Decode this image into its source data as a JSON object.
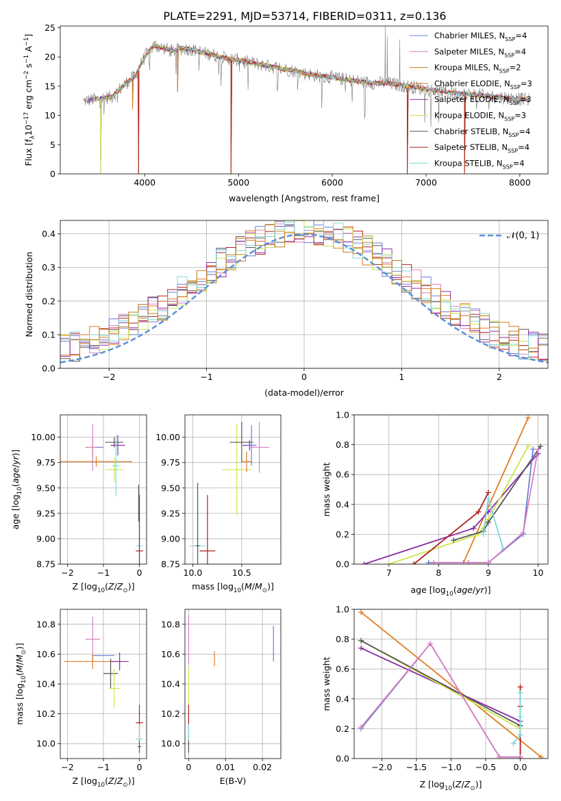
{
  "title": "PLATE=2291, MJD=53714, FIBERID=0311, z=0.136",
  "colors": {
    "Chabrier MILES": "#6a7fd8",
    "Salpeter MILES": "#d77fc0",
    "Kroupa MILES": "#c47a1c",
    "Chabrier ELODIE": "#e07b20",
    "Salpeter ELODIE": "#8a2aa5",
    "Kroupa ELODIE": "#cde64a",
    "Chabrier STELIB": "#555555",
    "Salpeter STELIB": "#b01c1c",
    "Kroupa STELIB": "#7fd8d8",
    "normal": "#5b8fd8",
    "grid": "#b0b0b0"
  },
  "chart_data": [
    {
      "id": "spectrum",
      "type": "line",
      "xlabel": "wavelength [Angstrom, rest frame]",
      "xlim": [
        3100,
        8300
      ],
      "ylim": [
        0,
        25.3
      ],
      "xticks": [
        4000,
        5000,
        6000,
        7000,
        8000
      ],
      "yticks": [
        0,
        5,
        10,
        15,
        20,
        25
      ],
      "legend_position": "upper right",
      "legend": [
        {
          "key": "Chabrier MILES",
          "label": "Chabrier MILES, N",
          "sub": "SSP",
          "n": "=4"
        },
        {
          "key": "Salpeter MILES",
          "label": "Salpeter MILES, N",
          "sub": "SSP",
          "n": "=4"
        },
        {
          "key": "Kroupa MILES",
          "label": "Kroupa MILES, N",
          "sub": "SSP",
          "n": "=2"
        },
        {
          "key": "Chabrier ELODIE",
          "label": "Chabrier ELODIE, N",
          "sub": "SSP",
          "n": "=3"
        },
        {
          "key": "Salpeter ELODIE",
          "label": "Salpeter ELODIE, N",
          "sub": "SSP",
          "n": "=3"
        },
        {
          "key": "Kroupa ELODIE",
          "label": "Kroupa ELODIE, N",
          "sub": "SSP",
          "n": "=3"
        },
        {
          "key": "Chabrier STELIB",
          "label": "Chabrier STELIB, N",
          "sub": "SSP",
          "n": "=4"
        },
        {
          "key": "Salpeter STELIB",
          "label": "Salpeter STELIB, N",
          "sub": "SSP",
          "n": "=4"
        },
        {
          "key": "Kroupa STELIB",
          "label": "Kroupa STELIB, N",
          "sub": "SSP",
          "n": "=4"
        }
      ],
      "continuum": [
        [
          3350,
          12.5
        ],
        [
          3500,
          12.8
        ],
        [
          3650,
          13.2
        ],
        [
          3800,
          15.5
        ],
        [
          3900,
          16.8
        ],
        [
          3950,
          18.5
        ],
        [
          4000,
          20.0
        ],
        [
          4100,
          22.0
        ],
        [
          4200,
          21.5
        ],
        [
          4300,
          21.0
        ],
        [
          4400,
          21.5
        ],
        [
          4500,
          21.3
        ],
        [
          4600,
          20.8
        ],
        [
          4700,
          20.5
        ],
        [
          4800,
          20.0
        ],
        [
          4900,
          19.7
        ],
        [
          5000,
          19.5
        ],
        [
          5200,
          18.8
        ],
        [
          5400,
          18.2
        ],
        [
          5600,
          17.6
        ],
        [
          5800,
          16.9
        ],
        [
          6000,
          16.5
        ],
        [
          6200,
          16.0
        ],
        [
          6400,
          15.6
        ],
        [
          6600,
          15.5
        ],
        [
          6800,
          15.0
        ],
        [
          7000,
          14.5
        ],
        [
          7200,
          14.1
        ],
        [
          7400,
          13.7
        ],
        [
          7600,
          13.4
        ],
        [
          7800,
          13.1
        ],
        [
          8000,
          12.8
        ],
        [
          8100,
          12.7
        ]
      ],
      "dips": [
        [
          3530,
          0
        ],
        [
          3870,
          11.0
        ],
        [
          3935,
          0
        ],
        [
          4350,
          14
        ],
        [
          4920,
          0
        ],
        [
          6800,
          0
        ],
        [
          7410,
          0
        ]
      ],
      "spikes": [
        [
          6565,
          25.3
        ],
        [
          6585,
          23.5
        ],
        [
          6720,
          23.0
        ],
        [
          5010,
          17.5
        ]
      ]
    },
    {
      "id": "residuals",
      "type": "bar",
      "xlabel": "(data-model)/error",
      "ylabel": "Normed distribution",
      "xlim": [
        -2.5,
        2.5
      ],
      "ylim": [
        0,
        0.44
      ],
      "xticks": [
        -2,
        -1,
        0,
        1,
        2
      ],
      "yticks": [
        0.0,
        0.1,
        0.2,
        0.3,
        0.4
      ],
      "grid": true,
      "legend": "𝒩(0, 1)",
      "bins": [
        -2.5,
        2.5,
        50
      ]
    },
    {
      "id": "age_vs_Z",
      "type": "scatter",
      "xlabel": "Z [log10(Z/Z⊙)]",
      "ylabel": "age  [log10(age/yr)]",
      "xlim": [
        -2.2,
        0.2
      ],
      "ylim": [
        8.75,
        10.22
      ],
      "xticks": [
        -2,
        -1,
        0
      ],
      "yticks": [
        8.75,
        9.0,
        9.25,
        9.5,
        9.75,
        10.0
      ],
      "grid": true,
      "points": [
        {
          "key": "Kroupa MILES",
          "x": -1.3,
          "y": 9.9,
          "xerr": 0.2,
          "yerr": 0.1
        },
        {
          "key": "Salpeter MILES",
          "x": -1.3,
          "y": 9.9,
          "xerr": 0.15,
          "yerr": 0.23
        },
        {
          "key": "Chabrier MILES",
          "x": -1.1,
          "y": 9.9,
          "xerr": 0.1,
          "yerr": 0.0
        },
        {
          "key": "Chabrier ELODIE",
          "x": -1.2,
          "y": 9.76,
          "xerr": 1.0,
          "yerr": 0.05
        },
        {
          "key": "Chabrier STELIB",
          "x": -0.7,
          "y": 9.95,
          "xerr": 0.25,
          "yerr": 0.05
        },
        {
          "key": "Salpeter ELODIE",
          "x": -0.6,
          "y": 9.92,
          "xerr": 0.2,
          "yerr": 0.1
        },
        {
          "key": "Kroupa ELODIE",
          "x": -0.7,
          "y": 9.68,
          "xerr": 0.25,
          "yerr": 0.12
        },
        {
          "key": "Kroupa STELIB",
          "x": -0.65,
          "y": 9.72,
          "xerr": 0.1,
          "yerr": 0.3
        },
        {
          "key": "Chabrier STELIB",
          "x": -0.02,
          "y": 9.35,
          "xerr": 0.0,
          "yerr": 0.18
        },
        {
          "key": "Kroupa STELIB",
          "x": 0.0,
          "y": 8.93,
          "xerr": 0.08,
          "yerr": 0.5
        },
        {
          "key": "Salpeter STELIB",
          "x": 0.0,
          "y": 8.88,
          "xerr": 0.1,
          "yerr": 0.55
        }
      ]
    },
    {
      "id": "age_vs_mass",
      "type": "scatter",
      "xlabel": "mass [log10(M/M⊙)]",
      "xlim": [
        9.92,
        10.9
      ],
      "ylim": [
        8.75,
        10.22
      ],
      "xticks": [
        10.0,
        10.5
      ],
      "yticks": [
        8.75,
        9.0,
        9.25,
        9.5,
        9.75,
        10.0
      ],
      "grid": true,
      "points": [
        {
          "key": "Kroupa ELODIE",
          "x": 10.45,
          "y": 9.68,
          "xerr": 0.15,
          "yerr": 0.45
        },
        {
          "key": "Chabrier STELIB",
          "x": 10.5,
          "y": 9.95,
          "xerr": 0.12,
          "yerr": 0.2
        },
        {
          "key": "Chabrier ELODIE",
          "x": 10.55,
          "y": 9.76,
          "xerr": 0.05,
          "yerr": 0.1
        },
        {
          "key": "Salpeter ELODIE",
          "x": 10.58,
          "y": 9.92,
          "xerr": 0.07,
          "yerr": 0.05
        },
        {
          "key": "Chabrier MILES",
          "x": 10.6,
          "y": 9.92,
          "xerr": 0.05,
          "yerr": 0.2
        },
        {
          "key": "Salpeter MILES",
          "x": 10.68,
          "y": 9.9,
          "xerr": 0.1,
          "yerr": 0.25
        },
        {
          "key": "Kroupa STELIB",
          "x": 10.05,
          "y": 8.93,
          "xerr": 0.08,
          "yerr": 0.5
        },
        {
          "key": "Chabrier STELIB",
          "x": 10.05,
          "y": 8.93,
          "xerr": 0.02,
          "yerr": 0.62
        },
        {
          "key": "Salpeter STELIB",
          "x": 10.15,
          "y": 8.88,
          "xerr": 0.08,
          "yerr": 0.55
        }
      ]
    },
    {
      "id": "mass_weight_vs_age",
      "type": "line",
      "xlabel": "age  [log10(age/yr)]",
      "ylabel": "mass weight",
      "xlim": [
        6.3,
        10.2
      ],
      "ylim": [
        0,
        1.0
      ],
      "xticks": [
        7,
        8,
        9,
        10
      ],
      "yticks": [
        0.0,
        0.2,
        0.4,
        0.6,
        0.8,
        1.0
      ],
      "grid": true,
      "series": [
        {
          "key": "Chabrier ELODIE",
          "x": [
            8.5,
            9.8
          ],
          "y": [
            0.01,
            0.98
          ]
        },
        {
          "key": "Salpeter ELODIE",
          "x": [
            6.5,
            8.7,
            9.0,
            10.0
          ],
          "y": [
            0.0,
            0.24,
            0.35,
            0.74
          ]
        },
        {
          "key": "Kroupa ELODIE",
          "x": [
            7.0,
            8.8,
            9.0,
            9.8
          ],
          "y": [
            0.0,
            0.2,
            0.3,
            0.79
          ]
        },
        {
          "key": "Chabrier STELIB",
          "x": [
            8.3,
            8.9,
            9.0,
            10.05
          ],
          "y": [
            0.16,
            0.22,
            0.28,
            0.79
          ]
        },
        {
          "key": "Salpeter STELIB",
          "x": [
            7.5,
            8.8,
            9.0
          ],
          "y": [
            0.0,
            0.35,
            0.48
          ]
        },
        {
          "key": "Kroupa STELIB",
          "x": [
            8.9,
            9.0,
            9.3
          ],
          "y": [
            0.2,
            0.44,
            0.1
          ]
        },
        {
          "key": "Chabrier MILES",
          "x": [
            7.8,
            8.6,
            9.0,
            9.7,
            9.9
          ],
          "y": [
            0.01,
            0.01,
            0.01,
            0.2,
            0.77
          ]
        },
        {
          "key": "Salpeter MILES",
          "x": [
            7.9,
            8.6,
            9.0,
            9.7,
            10.0
          ],
          "y": [
            0.01,
            0.01,
            0.01,
            0.21,
            0.77
          ]
        }
      ]
    },
    {
      "id": "mass_vs_Z",
      "type": "scatter",
      "xlabel": "Z [log10(Z/Z⊙)]",
      "ylabel": "mass [log10(M/M⊙)]",
      "xlim": [
        -2.2,
        0.2
      ],
      "ylim": [
        9.9,
        10.9
      ],
      "xticks": [
        -2,
        -1,
        0
      ],
      "yticks": [
        10.0,
        10.2,
        10.4,
        10.6,
        10.8
      ],
      "grid": true,
      "points": [
        {
          "key": "Salpeter MILES",
          "x": -1.3,
          "y": 10.7,
          "xerr": 0.2,
          "yerr": 0.15
        },
        {
          "key": "Chabrier MILES",
          "x": -1.0,
          "y": 10.59,
          "xerr": 0.3,
          "yerr": 0.0
        },
        {
          "key": "Chabrier ELODIE",
          "x": -1.3,
          "y": 10.55,
          "xerr": 0.8,
          "yerr": 0.05
        },
        {
          "key": "Salpeter ELODIE",
          "x": -0.55,
          "y": 10.55,
          "xerr": 0.25,
          "yerr": 0.06
        },
        {
          "key": "Chabrier STELIB",
          "x": -0.8,
          "y": 10.47,
          "xerr": 0.2,
          "yerr": 0.1
        },
        {
          "key": "Kroupa ELODIE",
          "x": -0.7,
          "y": 10.37,
          "xerr": 0.15,
          "yerr": 0.13
        },
        {
          "key": "Salpeter STELIB",
          "x": 0.0,
          "y": 10.14,
          "xerr": 0.1,
          "yerr": 0.12
        },
        {
          "key": "Kroupa STELIB",
          "x": 0.0,
          "y": 10.03,
          "xerr": 0.1,
          "yerr": 0.1
        },
        {
          "key": "Chabrier STELIB",
          "x": 0.0,
          "y": 9.98,
          "xerr": 0.05,
          "yerr": 0.04
        }
      ]
    },
    {
      "id": "mass_vs_ebv",
      "type": "scatter",
      "xlabel": "E(B-V)",
      "xlim": [
        -0.001,
        0.025
      ],
      "ylim": [
        9.9,
        10.9
      ],
      "xticks": [
        0.0,
        0.01,
        0.02
      ],
      "yticks": [
        10.0,
        10.2,
        10.4,
        10.6,
        10.8
      ],
      "grid": true,
      "points": [
        {
          "key": "Salpeter MILES",
          "x": 0.0,
          "y": 10.7,
          "xerr": 0.0,
          "yerr": 0.16
        },
        {
          "key": "Kroupa ELODIE",
          "x": 0.0,
          "y": 10.37,
          "xerr": 0.0,
          "yerr": 0.14
        },
        {
          "key": "Salpeter STELIB",
          "x": 0.0,
          "y": 10.14,
          "xerr": 0.0,
          "yerr": 0.12
        },
        {
          "key": "Kroupa STELIB",
          "x": 0.0,
          "y": 10.03,
          "xerr": 0.0,
          "yerr": 0.1
        },
        {
          "key": "Chabrier STELIB",
          "x": 0.0,
          "y": 9.98,
          "xerr": 0.0,
          "yerr": 0.04
        },
        {
          "key": "Chabrier ELODIE",
          "x": 0.007,
          "y": 10.57,
          "xerr": 0.0,
          "yerr": 0.05
        },
        {
          "key": "Chabrier MILES",
          "x": 0.023,
          "y": 10.67,
          "xerr": 0.0,
          "yerr": 0.12
        }
      ]
    },
    {
      "id": "mass_weight_vs_Z",
      "type": "line",
      "xlabel": "Z [log10(Z/Z⊙)]",
      "ylabel": "mass weight",
      "xlim": [
        -2.4,
        0.4
      ],
      "ylim": [
        0,
        1.0
      ],
      "xticks": [
        -2.0,
        -1.5,
        -1.0,
        -0.5,
        0.0
      ],
      "yticks": [
        0.0,
        0.2,
        0.4,
        0.6,
        0.8,
        1.0
      ],
      "grid": true,
      "series": [
        {
          "key": "Chabrier ELODIE",
          "x": [
            -2.3,
            0.3
          ],
          "y": [
            0.98,
            0.01
          ]
        },
        {
          "key": "Salpeter ELODIE",
          "x": [
            -2.3,
            0.0
          ],
          "y": [
            0.74,
            0.25
          ]
        },
        {
          "key": "Kroupa ELODIE",
          "x": [
            -2.3,
            0.0
          ],
          "y": [
            0.79,
            0.2
          ]
        },
        {
          "key": "Chabrier STELIB",
          "x": [
            -2.3,
            0.0,
            0.0
          ],
          "y": [
            0.79,
            0.22,
            0.16
          ]
        },
        {
          "key": "Salpeter STELIB",
          "x": [
            0.0,
            0.0,
            0.0
          ],
          "y": [
            0.0,
            0.35,
            0.48
          ]
        },
        {
          "key": "Kroupa STELIB",
          "x": [
            -0.1,
            0.0,
            0.0,
            0.0
          ],
          "y": [
            0.1,
            0.16,
            0.28,
            0.44
          ]
        },
        {
          "key": "Chabrier MILES",
          "x": [
            -2.3,
            -1.3,
            -0.3,
            0.0
          ],
          "y": [
            0.2,
            0.77,
            0.01,
            0.01
          ]
        },
        {
          "key": "Salpeter MILES",
          "x": [
            -2.3,
            -1.3,
            -0.3,
            0.0
          ],
          "y": [
            0.21,
            0.77,
            0.01,
            0.01
          ]
        }
      ]
    }
  ]
}
